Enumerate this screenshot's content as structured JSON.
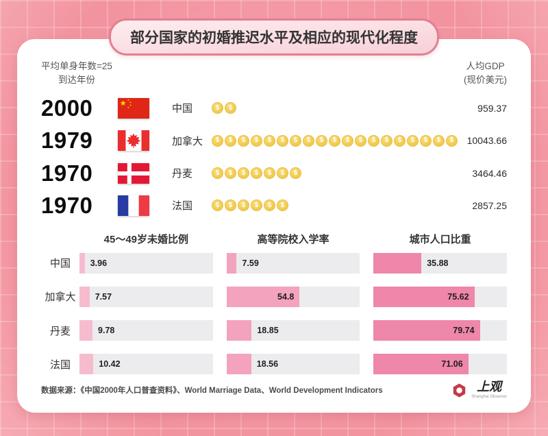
{
  "title": "部分国家的初婚推迟水平及相应的现代化程度",
  "top_section": {
    "left_header_line1": "平均单身年数=25",
    "left_header_line2": "到达年份",
    "right_header_line1": "人均GDP",
    "right_header_line2": "(现价美元)",
    "rows": [
      {
        "year": "2000",
        "country": "中国",
        "flag": "china",
        "coins": 2,
        "gdp": "959.37"
      },
      {
        "year": "1979",
        "country": "加拿大",
        "flag": "canada",
        "coins": 20,
        "gdp": "10043.66"
      },
      {
        "year": "1970",
        "country": "丹麦",
        "flag": "denmark",
        "coins": 7,
        "gdp": "3464.46"
      },
      {
        "year": "1970",
        "country": "法国",
        "flag": "france",
        "coins": 6,
        "gdp": "2857.25"
      }
    ],
    "coin_symbol": "$"
  },
  "chart_data": {
    "type": "bar",
    "orientation": "horizontal",
    "categories": [
      "中国",
      "加拿大",
      "丹麦",
      "法国"
    ],
    "series": [
      {
        "name": "45～49岁未婚比例",
        "values": [
          3.96,
          7.57,
          9.78,
          10.42
        ],
        "color": "#F6BCCE"
      },
      {
        "name": "高等院校入学率",
        "values": [
          7.59,
          54.8,
          18.85,
          18.56
        ],
        "color": "#F3A3BD"
      },
      {
        "name": "城市人口比重",
        "values": [
          35.88,
          75.62,
          79.74,
          71.06
        ],
        "color": "#EE87A9"
      }
    ],
    "xlim": [
      0,
      100
    ],
    "track_color": "#ECEBEE",
    "grid": false,
    "value_labels": true
  },
  "footer": {
    "source": "数据来源：《中国2000年人口普查资料》、World Marriage Data、World Development Indicators",
    "logo_text": "上观",
    "logo_subtext": "Shanghai Observer"
  },
  "colors": {
    "background": "#F49AA7",
    "card": "#FFFFFF",
    "title_border": "#E37E90",
    "coin": "#F2C94C",
    "logo_red": "#C5394A"
  }
}
